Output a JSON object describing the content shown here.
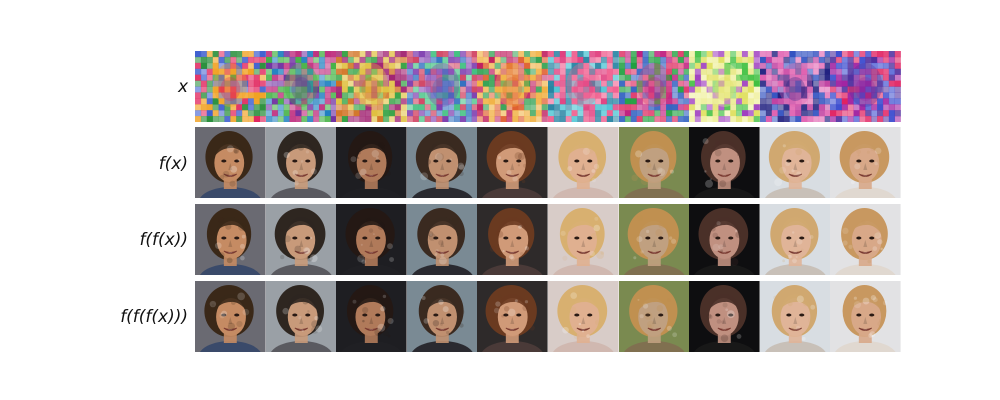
{
  "figure": {
    "rows": [
      {
        "label": "x",
        "kind": "noise"
      },
      {
        "label": "f(x)",
        "kind": "face"
      },
      {
        "label": "f(f(x))",
        "kind": "face"
      },
      {
        "label": "f(f(f(x)))",
        "kind": "face"
      }
    ],
    "columns": 10,
    "noise_palettes": [
      [
        "#e0205a",
        "#2a8f3c",
        "#4060d0",
        "#f0a020"
      ],
      [
        "#7030a0",
        "#2080c0",
        "#c03080",
        "#40b040"
      ],
      [
        "#d07020",
        "#30a040",
        "#a02070",
        "#e0c040"
      ],
      [
        "#3070c0",
        "#40c080",
        "#d04060",
        "#8040b0"
      ],
      [
        "#e06030",
        "#30a050",
        "#c02060",
        "#f0b040"
      ],
      [
        "#e04080",
        "#40c0d0",
        "#2080a0",
        "#f06090"
      ],
      [
        "#c02080",
        "#3060c0",
        "#20a040",
        "#e04070"
      ],
      [
        "#e0e060",
        "#40c040",
        "#a040c0",
        "#f0f0a0"
      ],
      [
        "#202080",
        "#c040a0",
        "#3050c0",
        "#e060b0"
      ],
      [
        "#a020a0",
        "#4050d0",
        "#e02060",
        "#5030a0"
      ]
    ],
    "face_cells": [
      {
        "bg": "#6a6a72",
        "skin": "#c58b63",
        "hair": "#3a2818",
        "shirt": "#3a4a6a"
      },
      {
        "bg": "#9aa0a6",
        "skin": "#c89a7a",
        "hair": "#2e2620",
        "shirt": "#5a5a60"
      },
      {
        "bg": "#1e1e22",
        "skin": "#b07a5a",
        "hair": "#241814",
        "shirt": "#202024"
      },
      {
        "bg": "#7a8a94",
        "skin": "#c09070",
        "hair": "#3a2a20",
        "shirt": "#2a2a30"
      },
      {
        "bg": "#2e2a2a",
        "skin": "#d09a78",
        "hair": "#6a3a20",
        "shirt": "#4a3a38"
      },
      {
        "bg": "#d8ccc8",
        "skin": "#e0b090",
        "hair": "#d8b070",
        "shirt": "#d0b8b0"
      },
      {
        "bg": "#7a8a50",
        "skin": "#c0a080",
        "hair": "#c09050",
        "shirt": "#807050"
      },
      {
        "bg": "#0e0e10",
        "skin": "#c09080",
        "hair": "#4a3028",
        "shirt": "#181818"
      },
      {
        "bg": "#d8dde2",
        "skin": "#e0b498",
        "hair": "#d0a870",
        "shirt": "#c8c0b8"
      },
      {
        "bg": "#e2e2e4",
        "skin": "#d8a888",
        "hair": "#c89860",
        "shirt": "#e0d8d0"
      }
    ]
  }
}
